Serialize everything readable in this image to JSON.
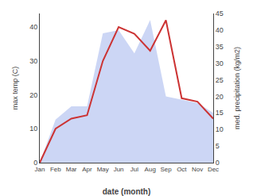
{
  "chart_data": {
    "type": "line",
    "categories": [
      "Jan",
      "Feb",
      "Mar",
      "Apr",
      "May",
      "Jun",
      "Jul",
      "Aug",
      "Sep",
      "Oct",
      "Nov",
      "Dec"
    ],
    "series": [
      {
        "type": "line",
        "color": "#cc3333",
        "values": [
          0,
          10,
          13,
          14,
          30,
          40,
          38,
          33,
          42,
          19,
          18,
          13
        ]
      },
      {
        "type": "area",
        "axis": "y2",
        "color": "#aabbee",
        "values": [
          0,
          13,
          17,
          17,
          39,
          40,
          33,
          43,
          20,
          19,
          18,
          15
        ]
      }
    ],
    "xlabel": "date (month)",
    "ylabel": "max temp (C)",
    "y2label": "med. precipitation (kg/m2)",
    "ylim": [
      0,
      44
    ],
    "yticks": [
      0,
      10,
      20,
      30,
      40
    ],
    "y2lim": [
      0,
      45
    ],
    "y2ticks": [
      0,
      5,
      10,
      15,
      20,
      25,
      30,
      35,
      40,
      45
    ],
    "grid": false
  }
}
